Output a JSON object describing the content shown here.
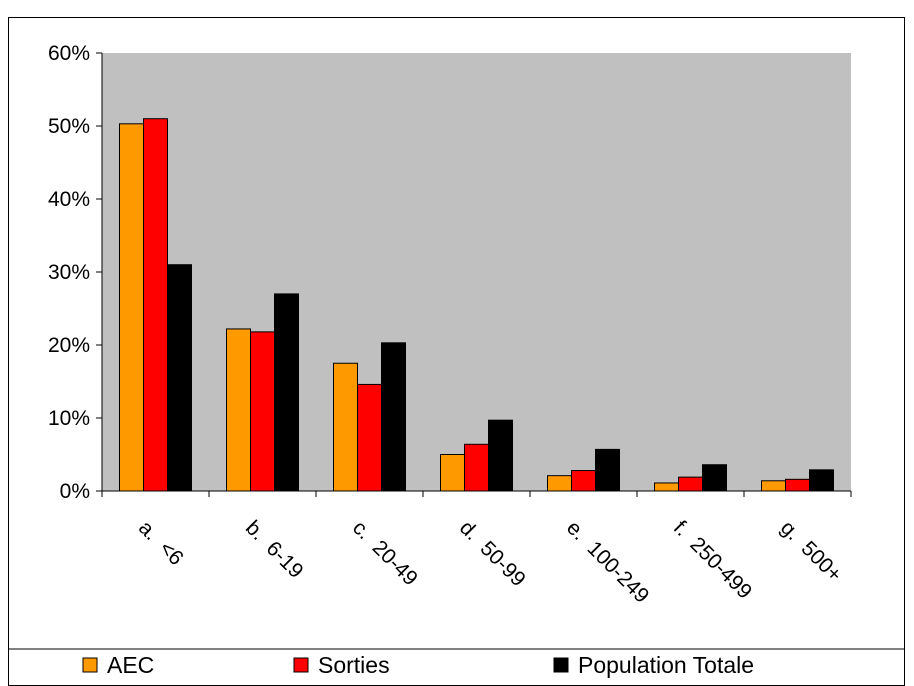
{
  "chart_data": {
    "type": "bar",
    "title": "",
    "xlabel": "",
    "ylabel": "",
    "ylim": [
      0,
      60
    ],
    "yticks": [
      "0%",
      "10%",
      "20%",
      "30%",
      "40%",
      "50%",
      "60%"
    ],
    "grid": false,
    "legend_position": "bottom",
    "plot_background": "#c0c0c0",
    "categories": [
      "a.  <6",
      "b.  6-19",
      "c.  20-49",
      "d.  50-99",
      "e.  100-249",
      "f.  250-499",
      "g.  500+"
    ],
    "series": [
      {
        "name": "AEC",
        "color": "#ff9900",
        "values": [
          50.3,
          22.2,
          17.5,
          5.0,
          2.1,
          1.1,
          1.4
        ]
      },
      {
        "name": "Sorties",
        "color": "#ff0000",
        "values": [
          51.0,
          21.8,
          14.6,
          6.4,
          2.8,
          1.9,
          1.6
        ]
      },
      {
        "name": "Population Totale",
        "color": "#000000",
        "values": [
          31.0,
          27.0,
          20.3,
          9.7,
          5.7,
          3.6,
          2.9
        ]
      }
    ]
  }
}
